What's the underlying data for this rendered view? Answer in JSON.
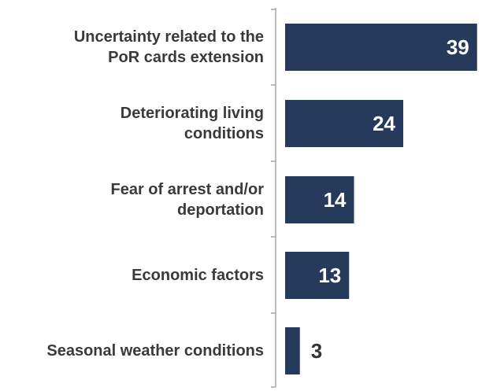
{
  "chart_data": {
    "type": "bar",
    "orientation": "horizontal",
    "categories": [
      [
        "Uncertainty related to the",
        "PoR cards extension"
      ],
      [
        "Deteriorating living",
        "conditions"
      ],
      [
        "Fear of arrest and/or",
        "deportation"
      ],
      [
        "Economic factors"
      ],
      [
        "Seasonal weather conditions"
      ]
    ],
    "values": [
      39,
      24,
      14,
      13,
      3
    ],
    "xlim": [
      0,
      40
    ],
    "grid": false,
    "legend": "none",
    "title": "",
    "xlabel": "",
    "ylabel": "",
    "colors": {
      "bar": "#263a5c",
      "label_inside": "#ffffff",
      "label_outside": "#333333",
      "category_text": "#3a3a3a",
      "axis": "#a6a6a6"
    }
  }
}
